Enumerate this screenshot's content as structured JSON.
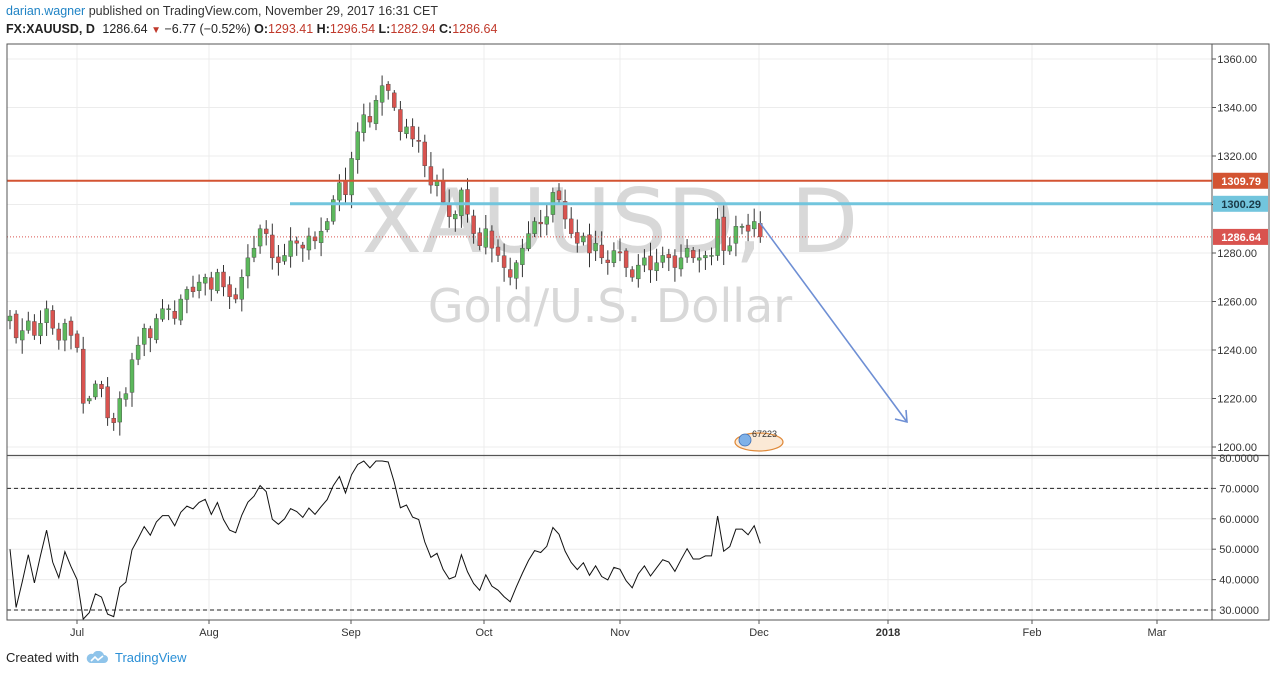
{
  "header": {
    "user": "darian.wagner",
    "published": "published on TradingView.com, November 29, 2017 16:31 CET"
  },
  "symbol_bar": {
    "symbol": "FX:XAUUSD, D",
    "last": "1286.64",
    "change": "−6.77 (−0.52%)",
    "o_label": "O:",
    "o": "1293.41",
    "h_label": "H:",
    "h": "1296.54",
    "l_label": "L:",
    "l": "1282.94",
    "c_label": "C:",
    "c": "1286.64"
  },
  "watermark": {
    "symbol": "XAUUSD, D",
    "name": "Gold/U.S. Dollar"
  },
  "colors": {
    "up": "#5cb85c",
    "down": "#d9534f",
    "resistance": "#d35432",
    "support": "#72c5dd",
    "current": "#d9534f",
    "arrow": "#6e8fd4"
  },
  "chart_data": [
    {
      "type": "candlestick",
      "title": "Gold/U.S. Dollar",
      "ylim": [
        1195,
        1365
      ],
      "y_ticks": [
        "1360.00",
        "1340.00",
        "1320.00",
        "1300.00",
        "1280.00",
        "1260.00",
        "1240.00",
        "1220.00",
        "1200.00"
      ],
      "x_ticks": [
        "Jul",
        "Aug",
        "Sep",
        "Oct",
        "Nov",
        "Dec",
        "2018",
        "Feb",
        "Mar"
      ],
      "close_series": [
        1254,
        1245,
        1248,
        1252,
        1246,
        1251,
        1257,
        1249,
        1244,
        1251,
        1246,
        1241,
        1218,
        1220,
        1226,
        1224,
        1212,
        1210,
        1220,
        1222,
        1236,
        1242,
        1249,
        1245,
        1253,
        1257,
        1257,
        1253,
        1261,
        1265,
        1264,
        1268,
        1270,
        1265,
        1272,
        1266,
        1262,
        1261,
        1270,
        1278,
        1282,
        1290,
        1288,
        1278,
        1276,
        1279,
        1285,
        1284,
        1282,
        1287,
        1285,
        1289,
        1293,
        1302,
        1309,
        1304,
        1319,
        1330,
        1337,
        1334,
        1343,
        1349,
        1347,
        1340,
        1330,
        1332,
        1327,
        1326,
        1316,
        1308,
        1310,
        1301,
        1295,
        1296,
        1306,
        1296,
        1288,
        1283,
        1290,
        1282,
        1279,
        1274,
        1270,
        1276,
        1282,
        1288,
        1293,
        1292,
        1295,
        1305,
        1302,
        1294,
        1288,
        1284,
        1287,
        1280,
        1284,
        1278,
        1276,
        1281,
        1280,
        1274,
        1270,
        1275,
        1278,
        1273,
        1276,
        1279,
        1278,
        1274,
        1278,
        1282,
        1278,
        1278,
        1279,
        1279,
        1294,
        1281,
        1283,
        1291,
        1291,
        1289,
        1293,
        1286.64
      ],
      "series": [
        {
          "name": "Resistance",
          "value": 1309.79
        },
        {
          "name": "Support",
          "value": 1300.29
        },
        {
          "name": "Last",
          "value": 1286.64
        }
      ],
      "labels": [
        "1309.79",
        "1300.29",
        "1286.64"
      ]
    },
    {
      "type": "line",
      "ylim": [
        26,
        80
      ],
      "y_ticks": [
        "80.0000",
        "70.0000",
        "60.0000",
        "50.0000",
        "40.0000",
        "30.0000"
      ],
      "levels": [
        70,
        30
      ]
    }
  ],
  "badge": {
    "text": "67223"
  },
  "footer": {
    "created": "Created with",
    "brand": "TradingView"
  }
}
